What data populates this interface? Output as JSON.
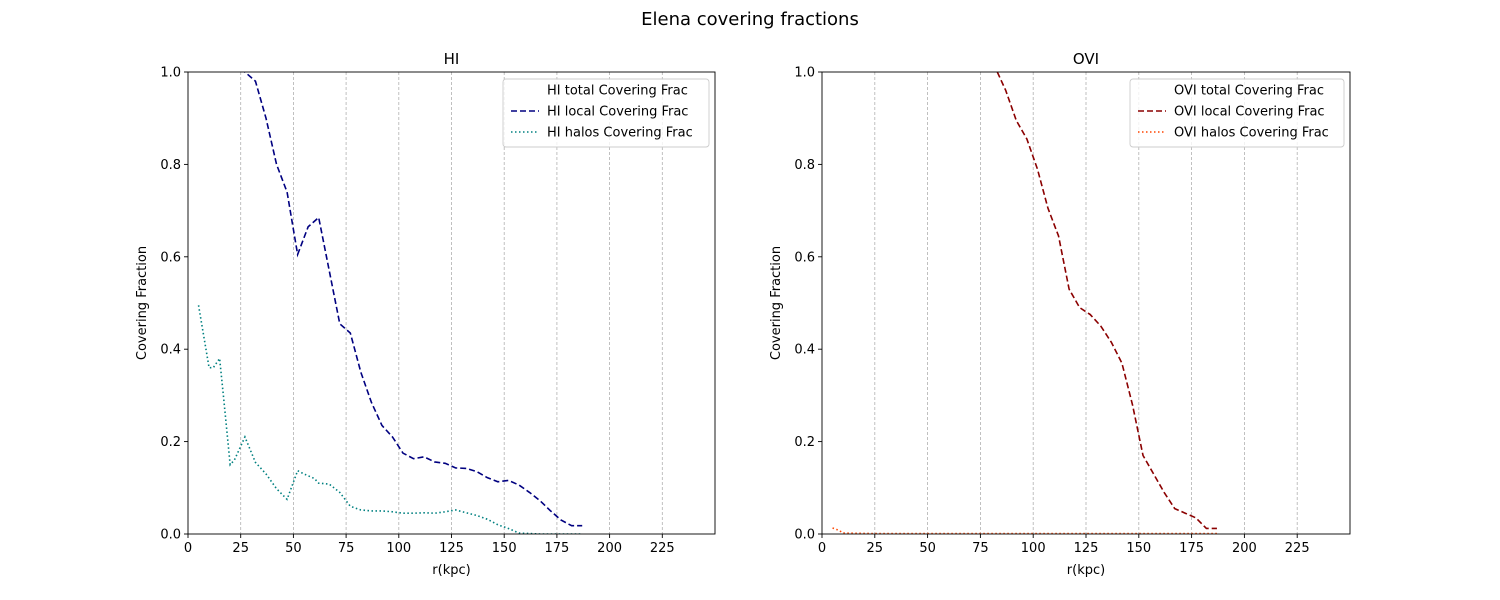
{
  "figure": {
    "title": "Elena covering fractions"
  },
  "chart_data": [
    {
      "type": "line",
      "title": "HI",
      "xlabel": "r(kpc)",
      "ylabel": "Covering Fraction",
      "xlim": [
        0,
        250
      ],
      "ylim": [
        0,
        1.0
      ],
      "xticks": [
        0,
        25,
        50,
        75,
        100,
        125,
        150,
        175,
        200,
        225
      ],
      "yticks": [
        0.0,
        0.2,
        0.4,
        0.6,
        0.8,
        1.0
      ],
      "xtick_labels": [
        "0",
        "25",
        "50",
        "75",
        "100",
        "125",
        "150",
        "175",
        "200",
        "225"
      ],
      "ytick_labels": [
        "0.0",
        "0.2",
        "0.4",
        "0.6",
        "0.8",
        "1.0"
      ],
      "grid": "vertical dashed at x ticks",
      "legend_position": "top-right",
      "series": [
        {
          "name": "HI total Covering Frac",
          "color": "#ffffff",
          "style": "solid",
          "x": [],
          "y": []
        },
        {
          "name": "HI local Covering Frac",
          "color": "#000080",
          "style": "dashed",
          "x": [
            25,
            27,
            32,
            37,
            42,
            47,
            52,
            57,
            62,
            67,
            72,
            77,
            82,
            87,
            92,
            97,
            102,
            107,
            112,
            117,
            122,
            127,
            132,
            137,
            142,
            147,
            152,
            157,
            162,
            167,
            172,
            177,
            182,
            187
          ],
          "y": [
            1.03,
            1.0,
            0.98,
            0.9,
            0.8,
            0.74,
            0.605,
            0.665,
            0.685,
            0.57,
            0.455,
            0.435,
            0.35,
            0.285,
            0.235,
            0.21,
            0.175,
            0.163,
            0.167,
            0.156,
            0.153,
            0.143,
            0.142,
            0.135,
            0.122,
            0.113,
            0.116,
            0.106,
            0.09,
            0.072,
            0.05,
            0.03,
            0.018,
            0.018
          ]
        },
        {
          "name": "HI halos Covering Frac",
          "color": "#008080",
          "style": "dotted",
          "x": [
            5,
            10,
            12,
            15,
            17,
            20,
            22,
            27,
            32,
            37,
            42,
            47,
            52,
            55,
            60,
            62,
            67,
            72,
            77,
            82,
            87,
            92,
            97,
            102,
            107,
            112,
            117,
            122,
            127,
            132,
            137,
            142,
            147,
            152,
            157,
            162,
            167,
            172,
            177,
            182,
            187
          ],
          "y": [
            0.495,
            0.36,
            0.36,
            0.38,
            0.29,
            0.15,
            0.16,
            0.21,
            0.155,
            0.13,
            0.098,
            0.075,
            0.137,
            0.13,
            0.12,
            0.11,
            0.108,
            0.09,
            0.06,
            0.052,
            0.05,
            0.05,
            0.048,
            0.045,
            0.045,
            0.046,
            0.045,
            0.048,
            0.052,
            0.046,
            0.04,
            0.032,
            0.02,
            0.012,
            0.002,
            0.001,
            0.0,
            0.0,
            0.0,
            0.0,
            0.0
          ]
        }
      ]
    },
    {
      "type": "line",
      "title": "OVI",
      "xlabel": "r(kpc)",
      "ylabel": "Covering Fraction",
      "xlim": [
        0,
        250
      ],
      "ylim": [
        0,
        1.0
      ],
      "xticks": [
        0,
        25,
        50,
        75,
        100,
        125,
        150,
        175,
        200,
        225
      ],
      "yticks": [
        0.0,
        0.2,
        0.4,
        0.6,
        0.8,
        1.0
      ],
      "xtick_labels": [
        "0",
        "25",
        "50",
        "75",
        "100",
        "125",
        "150",
        "175",
        "200",
        "225"
      ],
      "ytick_labels": [
        "0.0",
        "0.2",
        "0.4",
        "0.6",
        "0.8",
        "1.0"
      ],
      "grid": "vertical dashed at x ticks",
      "legend_position": "top-right",
      "series": [
        {
          "name": "OVI total Covering Frac",
          "color": "#ffffff",
          "style": "solid",
          "x": [],
          "y": []
        },
        {
          "name": "OVI local Covering Frac",
          "color": "#8b0000",
          "style": "dashed",
          "x": [
            83,
            87,
            92,
            97,
            102,
            107,
            112,
            117,
            122,
            127,
            132,
            137,
            142,
            147,
            152,
            157,
            162,
            167,
            172,
            177,
            182,
            187
          ],
          "y": [
            1.0,
            0.96,
            0.895,
            0.855,
            0.79,
            0.705,
            0.645,
            0.53,
            0.49,
            0.475,
            0.45,
            0.415,
            0.37,
            0.28,
            0.17,
            0.13,
            0.09,
            0.055,
            0.045,
            0.035,
            0.012,
            0.012
          ]
        },
        {
          "name": "OVI halos Covering Frac",
          "color": "#ff4500",
          "style": "dotted",
          "x": [
            5,
            8,
            10,
            25,
            50,
            75,
            100,
            125,
            150,
            175,
            187
          ],
          "y": [
            0.013,
            0.008,
            0.002,
            0.001,
            0.001,
            0.001,
            0.001,
            0.001,
            0.001,
            0.001,
            0.001
          ]
        }
      ]
    }
  ]
}
